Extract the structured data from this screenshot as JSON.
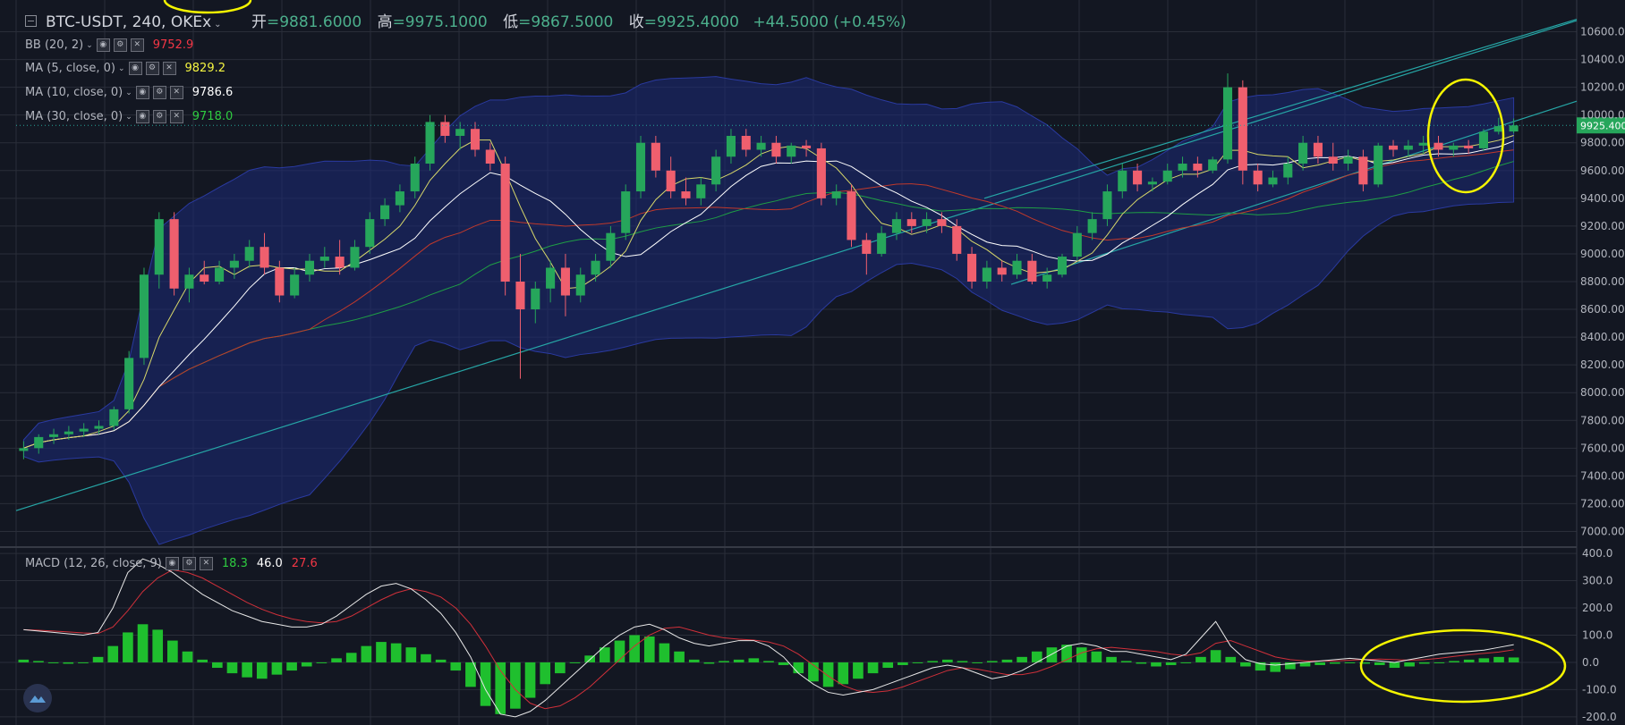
{
  "header": {
    "symbol": "BTC-USDT, 240, OKEx",
    "open_label": "开",
    "open": "=9881.6000",
    "high_label": "高",
    "high": "=9975.1000",
    "low_label": "低",
    "low": "=9867.5000",
    "close_label": "收",
    "close": "=9925.4000",
    "change": "+44.5000 (+0.45%)"
  },
  "indicators": [
    {
      "name": "BB (20, 2)",
      "value": "9752.9",
      "color": "#f23645"
    },
    {
      "name": "MA (5, close, 0)",
      "value": "9829.2",
      "color": "#f5f542"
    },
    {
      "name": "MA (10, close, 0)",
      "value": "9786.6",
      "color": "#ffffff"
    },
    {
      "name": "MA (30, close, 0)",
      "value": "9718.0",
      "color": "#2ecc40"
    }
  ],
  "macd_legend": {
    "name": "MACD (12, 26, close, 9)",
    "values": [
      {
        "v": "18.3",
        "color": "#2ecc40"
      },
      {
        "v": "46.0",
        "color": "#ffffff"
      },
      {
        "v": "27.6",
        "color": "#f23645"
      }
    ]
  },
  "price_axis": {
    "ticks": [
      "10600.00",
      "10400.00",
      "10200.00",
      "10000.00",
      "9800.00",
      "9600.00",
      "9400.00",
      "9200.00",
      "9000.00",
      "8800.00",
      "8600.00",
      "8400.00",
      "8200.00",
      "8000.00",
      "7800.00",
      "7600.00",
      "7400.00",
      "7200.00",
      "7000.00"
    ],
    "last_price_label": "9925.400"
  },
  "macd_axis": {
    "ticks": [
      "400.0",
      "300.0",
      "200.0",
      "100.0",
      "0.0",
      "-100.0",
      "-200.0"
    ]
  },
  "colors": {
    "background": "#131722",
    "grid": "#2a2e39",
    "up": "#26a65b",
    "down": "#ef5f6e",
    "bb_fill": "#1c2a78",
    "trendline": "#26a6a6",
    "annotation": "#f5f500"
  },
  "chart_data": [
    {
      "type": "candlestick",
      "symbol": "BTC-USDT",
      "interval": "240",
      "ylim": [
        6900,
        10700
      ],
      "grid": true,
      "last_close": 9925.4,
      "ohlc_approx": [
        [
          7580,
          7650,
          7520,
          7600
        ],
        [
          7600,
          7700,
          7560,
          7680
        ],
        [
          7680,
          7740,
          7630,
          7700
        ],
        [
          7700,
          7760,
          7660,
          7720
        ],
        [
          7720,
          7780,
          7680,
          7740
        ],
        [
          7740,
          7800,
          7700,
          7760
        ],
        [
          7760,
          7900,
          7730,
          7880
        ],
        [
          7880,
          8300,
          7850,
          8250
        ],
        [
          8250,
          8900,
          8200,
          8850
        ],
        [
          8850,
          9300,
          8750,
          9250
        ],
        [
          9250,
          9300,
          8700,
          8750
        ],
        [
          8750,
          8900,
          8650,
          8850
        ],
        [
          8850,
          8950,
          8780,
          8800
        ],
        [
          8800,
          8950,
          8780,
          8900
        ],
        [
          8900,
          9000,
          8820,
          8950
        ],
        [
          8950,
          9100,
          8900,
          9050
        ],
        [
          9050,
          9150,
          8850,
          8900
        ],
        [
          8900,
          8950,
          8650,
          8700
        ],
        [
          8700,
          8900,
          8680,
          8850
        ],
        [
          8850,
          9000,
          8800,
          8950
        ],
        [
          8950,
          9050,
          8900,
          8980
        ],
        [
          8980,
          9100,
          8850,
          8900
        ],
        [
          8900,
          9100,
          8880,
          9050
        ],
        [
          9050,
          9300,
          9000,
          9250
        ],
        [
          9250,
          9400,
          9200,
          9350
        ],
        [
          9350,
          9500,
          9300,
          9450
        ],
        [
          9450,
          9700,
          9400,
          9650
        ],
        [
          9650,
          10000,
          9600,
          9950
        ],
        [
          9950,
          10000,
          9800,
          9850
        ],
        [
          9850,
          9950,
          9750,
          9900
        ],
        [
          9900,
          9950,
          9700,
          9750
        ],
        [
          9750,
          9800,
          9600,
          9650
        ],
        [
          9650,
          9700,
          8700,
          8800
        ],
        [
          8800,
          9000,
          8100,
          8600
        ],
        [
          8600,
          8800,
          8500,
          8750
        ],
        [
          8750,
          8950,
          8650,
          8900
        ],
        [
          8900,
          9000,
          8550,
          8700
        ],
        [
          8700,
          8900,
          8650,
          8850
        ],
        [
          8850,
          9000,
          8800,
          8950
        ],
        [
          8950,
          9200,
          8900,
          9150
        ],
        [
          9150,
          9500,
          9100,
          9450
        ],
        [
          9450,
          9850,
          9400,
          9800
        ],
        [
          9800,
          9850,
          9550,
          9600
        ],
        [
          9600,
          9700,
          9400,
          9450
        ],
        [
          9450,
          9550,
          9350,
          9400
        ],
        [
          9400,
          9550,
          9350,
          9500
        ],
        [
          9500,
          9750,
          9450,
          9700
        ],
        [
          9700,
          9900,
          9650,
          9850
        ],
        [
          9850,
          9900,
          9700,
          9750
        ],
        [
          9750,
          9850,
          9700,
          9800
        ],
        [
          9800,
          9850,
          9650,
          9700
        ],
        [
          9700,
          9800,
          9650,
          9780
        ],
        [
          9780,
          9820,
          9700,
          9760
        ],
        [
          9760,
          9800,
          9350,
          9400
        ],
        [
          9400,
          9500,
          9350,
          9450
        ],
        [
          9450,
          9500,
          9050,
          9100
        ],
        [
          9100,
          9150,
          8850,
          9000
        ],
        [
          9000,
          9200,
          8980,
          9150
        ],
        [
          9150,
          9300,
          9100,
          9250
        ],
        [
          9250,
          9300,
          9150,
          9200
        ],
        [
          9200,
          9300,
          9150,
          9250
        ],
        [
          9250,
          9300,
          9150,
          9200
        ],
        [
          9200,
          9250,
          8950,
          9000
        ],
        [
          9000,
          9050,
          8750,
          8800
        ],
        [
          8800,
          8950,
          8750,
          8900
        ],
        [
          8900,
          8950,
          8800,
          8850
        ],
        [
          8850,
          9000,
          8820,
          8950
        ],
        [
          8950,
          9000,
          8780,
          8800
        ],
        [
          8800,
          8900,
          8750,
          8850
        ],
        [
          8850,
          9000,
          8830,
          8980
        ],
        [
          8980,
          9200,
          8950,
          9150
        ],
        [
          9150,
          9300,
          9100,
          9250
        ],
        [
          9250,
          9500,
          9200,
          9450
        ],
        [
          9450,
          9650,
          9400,
          9600
        ],
        [
          9600,
          9650,
          9450,
          9500
        ],
        [
          9500,
          9550,
          9450,
          9520
        ],
        [
          9520,
          9650,
          9500,
          9600
        ],
        [
          9600,
          9700,
          9550,
          9650
        ],
        [
          9650,
          9700,
          9550,
          9600
        ],
        [
          9600,
          9700,
          9580,
          9680
        ],
        [
          9680,
          10300,
          9650,
          10200
        ],
        [
          10200,
          10250,
          9500,
          9600
        ],
        [
          9600,
          9650,
          9450,
          9500
        ],
        [
          9500,
          9600,
          9480,
          9550
        ],
        [
          9550,
          9700,
          9500,
          9650
        ],
        [
          9650,
          9850,
          9600,
          9800
        ],
        [
          9800,
          9850,
          9650,
          9700
        ],
        [
          9700,
          9800,
          9600,
          9650
        ],
        [
          9650,
          9750,
          9600,
          9700
        ],
        [
          9700,
          9750,
          9450,
          9500
        ],
        [
          9500,
          9800,
          9480,
          9780
        ],
        [
          9780,
          9820,
          9700,
          9750
        ],
        [
          9750,
          9820,
          9700,
          9780
        ],
        [
          9780,
          9850,
          9720,
          9800
        ],
        [
          9800,
          9850,
          9700,
          9750
        ],
        [
          9750,
          9800,
          9700,
          9780
        ],
        [
          9780,
          9820,
          9720,
          9760
        ],
        [
          9760,
          9900,
          9740,
          9880
        ],
        [
          9880,
          9980,
          9860,
          9920
        ],
        [
          9881.6,
          9975.1,
          9867.5,
          9925.4
        ]
      ]
    },
    {
      "type": "bar",
      "name": "MACD (12, 26, close, 9)",
      "ylim": [
        -230,
        420
      ],
      "values_approx": [
        10,
        5,
        0,
        -5,
        0,
        20,
        60,
        110,
        140,
        120,
        80,
        40,
        10,
        -20,
        -40,
        -55,
        -60,
        -45,
        -30,
        -15,
        0,
        15,
        35,
        60,
        75,
        70,
        55,
        30,
        10,
        -30,
        -90,
        -160,
        -190,
        -170,
        -130,
        -80,
        -40,
        0,
        25,
        55,
        80,
        100,
        95,
        70,
        40,
        10,
        -5,
        5,
        10,
        15,
        5,
        -10,
        -40,
        -70,
        -90,
        -80,
        -60,
        -40,
        -20,
        -10,
        0,
        5,
        10,
        5,
        0,
        5,
        10,
        20,
        40,
        55,
        65,
        55,
        40,
        20,
        5,
        -5,
        -15,
        -10,
        0,
        20,
        45,
        20,
        -15,
        -30,
        -35,
        -25,
        -15,
        -10,
        -5,
        0,
        -5,
        -10,
        -20,
        -15,
        -5,
        0,
        5,
        10,
        15,
        20,
        18
      ]
    }
  ]
}
